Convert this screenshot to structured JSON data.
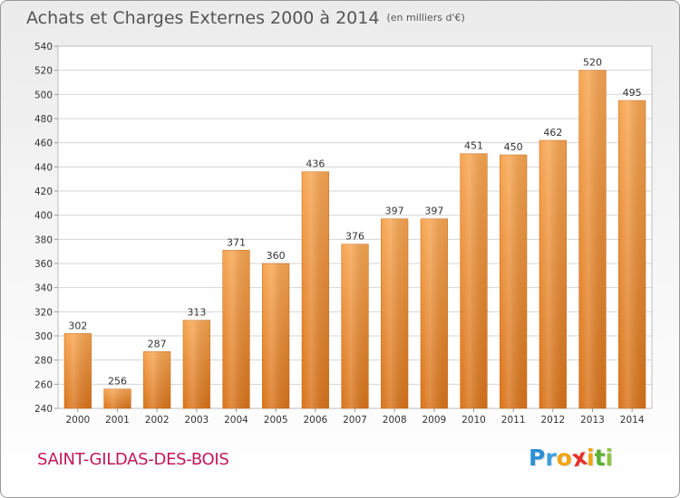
{
  "colors": {
    "bar_light": "#f7a550",
    "bar_dark": "#d9731a",
    "title": "#555555",
    "commune": "#c2185b",
    "grid": "#d4d4d4"
  },
  "commune": "SAINT-GILDAS-DES-BOIS",
  "logo": {
    "letters": [
      "P",
      "r",
      "o",
      "x",
      "i",
      "t",
      "i"
    ],
    "colors": [
      "#2a8fd6",
      "#3aa0e0",
      "#f2a413",
      "#e8312b",
      "#f2a413",
      "#5bb030",
      "#8fc73e"
    ]
  },
  "chart_data": {
    "type": "bar",
    "title": "Achats et Charges Externes 2000 à 2014",
    "subtitle": "(en milliers d'€)",
    "xlabel": "",
    "ylabel": "",
    "categories": [
      "2000",
      "2001",
      "2002",
      "2003",
      "2004",
      "2005",
      "2006",
      "2007",
      "2008",
      "2009",
      "2010",
      "2011",
      "2012",
      "2013",
      "2014"
    ],
    "values": [
      302,
      256,
      287,
      313,
      371,
      360,
      436,
      376,
      397,
      397,
      451,
      450,
      462,
      520,
      495
    ],
    "ylim": [
      240,
      540
    ],
    "yticks": [
      240,
      260,
      280,
      300,
      320,
      340,
      360,
      380,
      400,
      420,
      440,
      460,
      480,
      500,
      520,
      540
    ],
    "grid": true,
    "legend": "none"
  }
}
